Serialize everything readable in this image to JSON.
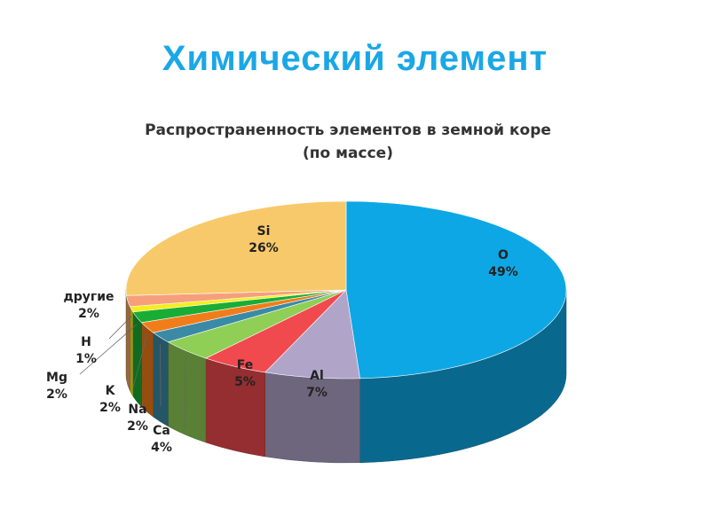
{
  "slide": {
    "title": "Химический элемент"
  },
  "chart_data": {
    "type": "pie",
    "title": [
      "Распространенность элементов в земной коре",
      "(по массе)"
    ],
    "unit": "%",
    "slices": [
      {
        "label": "O",
        "value": 49,
        "color": "#0ea7e5"
      },
      {
        "label": "Al",
        "value": 7,
        "color": "#b0a5c9"
      },
      {
        "label": "Fe",
        "value": 5,
        "color": "#f04a4e"
      },
      {
        "label": "Ca",
        "value": 4,
        "color": "#8fcf56"
      },
      {
        "label": "Na",
        "value": 2,
        "color": "#3a8aa6"
      },
      {
        "label": "K",
        "value": 2,
        "color": "#f07d1a"
      },
      {
        "label": "Mg",
        "value": 2,
        "color": "#19ad36"
      },
      {
        "label": "H",
        "value": 1,
        "color": "#f5ee1f"
      },
      {
        "label": "другие",
        "value": 2,
        "color": "#f5a07a"
      },
      {
        "label": "Si",
        "value": 26,
        "color": "#f8c96a"
      }
    ]
  }
}
